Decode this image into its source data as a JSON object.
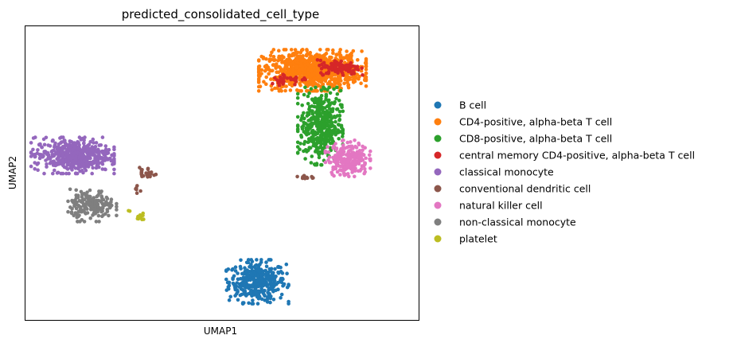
{
  "chart_data": {
    "type": "scatter",
    "title": "predicted_consolidated_cell_type",
    "xlabel": "UMAP1",
    "ylabel": "UMAP2",
    "xlim": [
      0,
      100
    ],
    "ylim": [
      0,
      100
    ],
    "grid": false,
    "ticks_shown": false,
    "legend_position": "right-outside",
    "series": [
      {
        "name": "B cell",
        "color": "#1f77b4",
        "clusters": [
          {
            "cx": 59,
            "cy": 13,
            "sx": 3.6,
            "sy": 3.4,
            "n": 380
          }
        ]
      },
      {
        "name": "CD4-positive, alpha-beta T cell",
        "color": "#ff7f0e",
        "clusters": [
          {
            "cx": 73,
            "cy": 85,
            "sx": 6.2,
            "sy": 3.2,
            "n": 900
          }
        ]
      },
      {
        "name": "CD8-positive, alpha-beta T cell",
        "color": "#2ca02c",
        "clusters": [
          {
            "cx": 75,
            "cy": 66,
            "sx": 2.6,
            "sy": 6.0,
            "n": 430
          }
        ]
      },
      {
        "name": "central memory CD4-positive, alpha-beta T cell",
        "color": "#d62728",
        "clusters": [
          {
            "cx": 80,
            "cy": 86,
            "sx": 2.6,
            "sy": 1.2,
            "n": 110
          },
          {
            "cx": 67,
            "cy": 82,
            "sx": 2.4,
            "sy": 1.0,
            "n": 35
          }
        ]
      },
      {
        "name": "classical monocyte",
        "color": "#9467bd",
        "clusters": [
          {
            "cx": 12,
            "cy": 56,
            "sx": 4.8,
            "sy": 2.8,
            "n": 500
          }
        ]
      },
      {
        "name": "conventional dendritic cell",
        "color": "#8c564b",
        "clusters": [
          {
            "cx": 31,
            "cy": 50,
            "sx": 1.0,
            "sy": 1.0,
            "n": 25
          },
          {
            "cx": 71,
            "cy": 49,
            "sx": 1.4,
            "sy": 0.9,
            "n": 12
          },
          {
            "cx": 28.5,
            "cy": 43.5,
            "sx": 0.5,
            "sy": 1.0,
            "n": 6
          }
        ]
      },
      {
        "name": "natural killer cell",
        "color": "#e377c2",
        "clusters": [
          {
            "cx": 82,
            "cy": 55,
            "sx": 2.6,
            "sy": 2.8,
            "n": 220
          }
        ]
      },
      {
        "name": "non-classical monocyte",
        "color": "#7f7f7f",
        "clusters": [
          {
            "cx": 17,
            "cy": 39,
            "sx": 2.8,
            "sy": 2.5,
            "n": 180
          }
        ]
      },
      {
        "name": "platelet",
        "color": "#bcbd22",
        "clusters": [
          {
            "cx": 29.5,
            "cy": 35,
            "sx": 0.5,
            "sy": 0.6,
            "n": 12
          },
          {
            "cx": 26.5,
            "cy": 37,
            "sx": 0.2,
            "sy": 0.2,
            "n": 2
          }
        ]
      }
    ]
  }
}
